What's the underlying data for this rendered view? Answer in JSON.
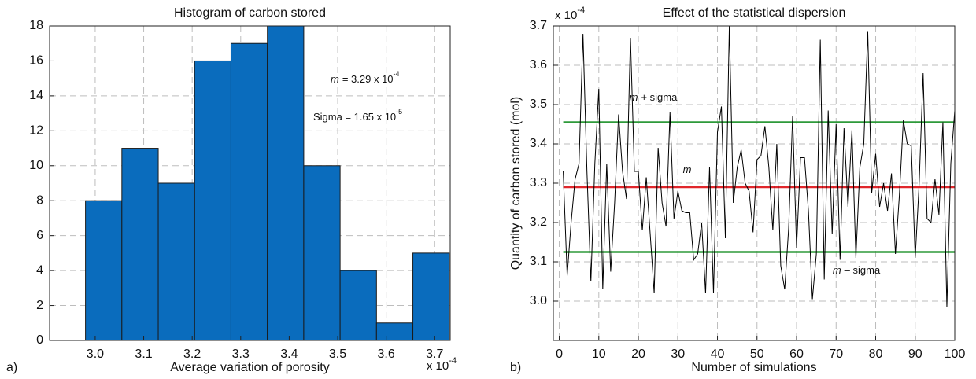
{
  "chart_data": [
    {
      "type": "histogram",
      "title": "Histogram of carbon stored",
      "panel_label": "a)",
      "x_label": "Average variation of porosity",
      "x_multiplier": {
        "text": "x 10",
        "exponent": "-4"
      },
      "bins": [
        2.98,
        3.055,
        3.13,
        3.205,
        3.28,
        3.355,
        3.43,
        3.505,
        3.58,
        3.655,
        3.73
      ],
      "counts": [
        8,
        11,
        9,
        16,
        17,
        18,
        10,
        4,
        1,
        5
      ],
      "color": "#0a6cbd",
      "xlim": [
        2.906,
        3.732
      ],
      "xticks": [
        {
          "value": 3.0,
          "label": "3.0"
        },
        3.1,
        3.2,
        3.3,
        3.4,
        3.5,
        3.6,
        3.7
      ],
      "ylim": [
        0,
        18
      ],
      "yticks": [
        0,
        2,
        4,
        6,
        8,
        10,
        12,
        14,
        16,
        18
      ],
      "grid": true,
      "annotations": [
        {
          "italic": "m",
          "text": "= 3.29 x 10",
          "exponent": "-4"
        },
        {
          "text": "Sigma = 1.65 x 10",
          "exponent": "-5"
        }
      ]
    },
    {
      "type": "line",
      "title": "Effect of the statistical dispersion",
      "panel_label": "b)",
      "x_label": "Number of simulations",
      "y_label": "Quantity of carbon stored (mol)",
      "y_multiplier": {
        "text": "x 10",
        "exponent": "-4"
      },
      "x": [
        1,
        2,
        3,
        4,
        5,
        6,
        7,
        8,
        9,
        10,
        11,
        12,
        13,
        14,
        15,
        16,
        17,
        18,
        19,
        20,
        21,
        22,
        23,
        24,
        25,
        26,
        27,
        28,
        29,
        30,
        31,
        32,
        33,
        34,
        35,
        36,
        37,
        38,
        39,
        40,
        41,
        42,
        43,
        44,
        45,
        46,
        47,
        48,
        49,
        50,
        51,
        52,
        53,
        54,
        55,
        56,
        57,
        58,
        59,
        60,
        61,
        62,
        63,
        64,
        65,
        66,
        67,
        68,
        69,
        70,
        71,
        72,
        73,
        74,
        75,
        76,
        77,
        78,
        79,
        80,
        81,
        82,
        83,
        84,
        85,
        86,
        87,
        88,
        89,
        90,
        91,
        92,
        93,
        94,
        95,
        96,
        97,
        98,
        99,
        100
      ],
      "series": [
        {
          "color": "#000000",
          "values": [
            3.33,
            3.065,
            3.2,
            3.31,
            3.35,
            3.68,
            3.33,
            3.05,
            3.35,
            3.54,
            3.03,
            3.35,
            3.075,
            3.25,
            3.475,
            3.33,
            3.26,
            3.67,
            3.33,
            3.33,
            3.18,
            3.315,
            3.17,
            3.02,
            3.39,
            3.25,
            3.19,
            3.48,
            3.21,
            3.28,
            3.23,
            3.225,
            3.225,
            3.105,
            3.12,
            3.2,
            3.02,
            3.34,
            3.02,
            3.43,
            3.495,
            3.16,
            3.7,
            3.25,
            3.34,
            3.385,
            3.3,
            3.28,
            3.175,
            3.36,
            3.37,
            3.445,
            3.34,
            3.18,
            3.4,
            3.09,
            3.03,
            3.185,
            3.47,
            3.135,
            3.365,
            3.365,
            3.23,
            3.005,
            3.12,
            3.665,
            3.055,
            3.485,
            3.17,
            3.45,
            3.105,
            3.44,
            3.24,
            3.435,
            3.11,
            3.34,
            3.4,
            3.685,
            3.275,
            3.375,
            3.24,
            3.3,
            3.23,
            3.325,
            3.12,
            3.27,
            3.46,
            3.4,
            3.395,
            3.11,
            3.3,
            3.58,
            3.21,
            3.2,
            3.31,
            3.22,
            3.455,
            2.985,
            3.35,
            3.485
          ]
        }
      ],
      "reference_lines": [
        {
          "value": 3.455,
          "color": "#2e9a3a",
          "label": {
            "italic": "m",
            "text": "+ sigma"
          }
        },
        {
          "value": 3.29,
          "color": "#e0262b",
          "label": {
            "italic": "m"
          }
        },
        {
          "value": 3.125,
          "color": "#2e9a3a",
          "label": {
            "italic": "m",
            "text": "– sigma"
          }
        }
      ],
      "xlim": [
        -1.5,
        100
      ],
      "xticks": [
        0,
        10,
        20,
        30,
        40,
        50,
        60,
        70,
        80,
        90,
        100
      ],
      "ylim": [
        2.9,
        3.7
      ],
      "yticks": [
        {
          "value": 3.0,
          "label": "3.0"
        },
        3.1,
        3.2,
        3.3,
        3.4,
        3.5,
        3.6,
        3.7
      ],
      "grid": true
    }
  ]
}
